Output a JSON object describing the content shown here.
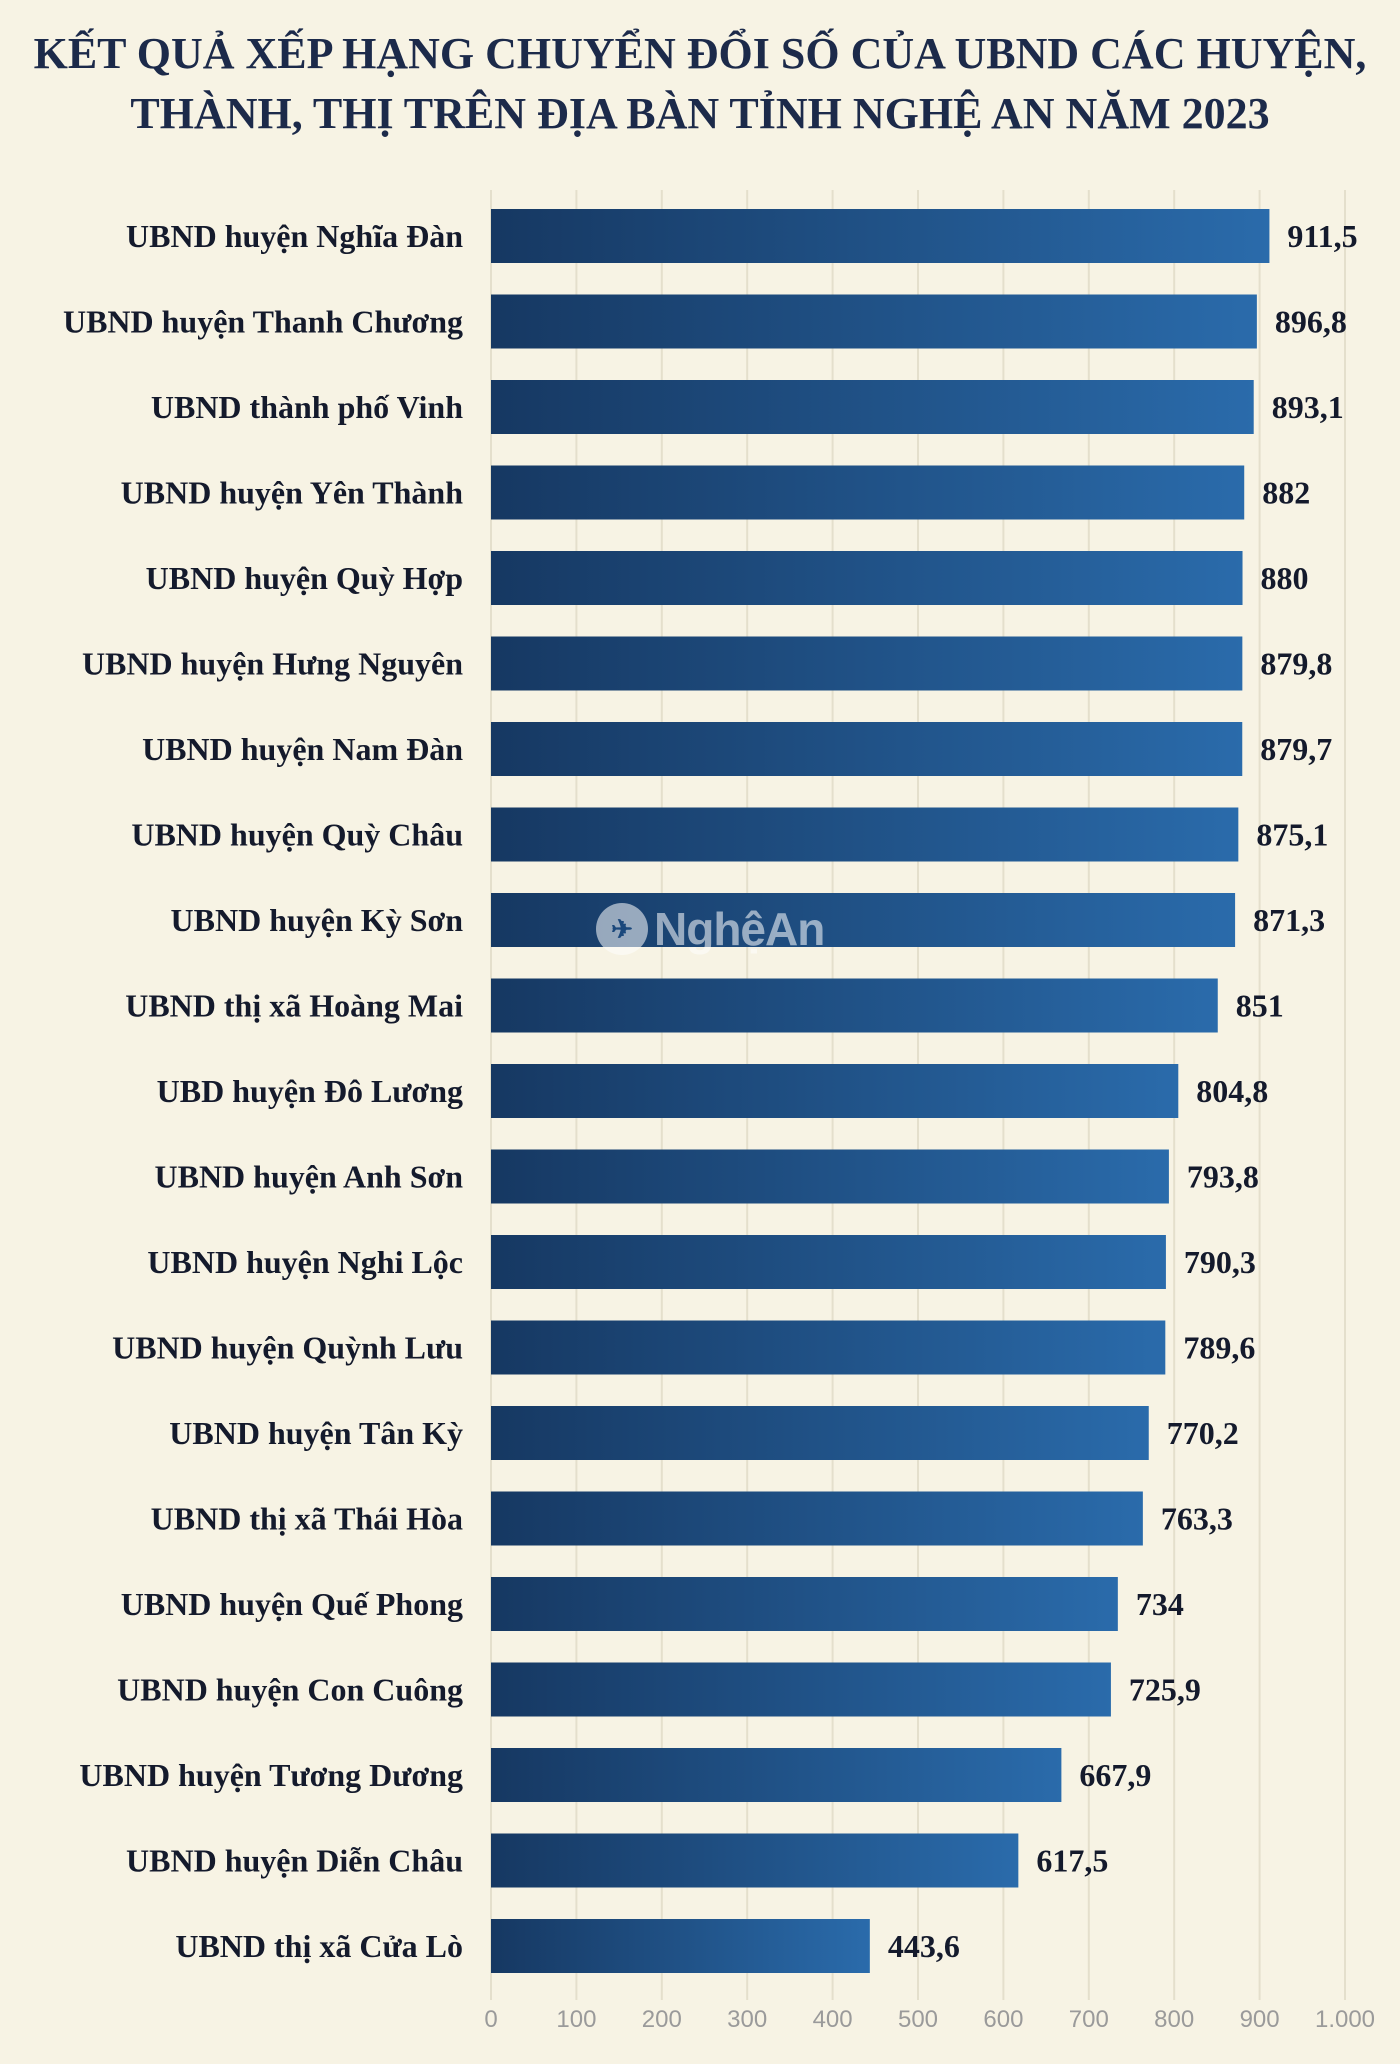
{
  "chart_data": {
    "type": "bar",
    "orientation": "horizontal",
    "title_lines": [
      "KẾT QUẢ XẾP HẠNG CHUYỂN ĐỔI SỐ CỦA UBND CÁC HUYỆN,",
      "THÀNH, THỊ TRÊN ĐỊA BÀN TỈNH NGHỆ AN NĂM 2023"
    ],
    "categories": [
      "UBND huyện Nghĩa Đàn",
      "UBND huyện Thanh Chương",
      "UBND thành phố Vinh",
      "UBND huyện Yên Thành",
      "UBND huyện Quỳ Hợp",
      "UBND huyện Hưng Nguyên",
      "UBND huyện Nam Đàn",
      "UBND huyện Quỳ Châu",
      "UBND huyện Kỳ Sơn",
      "UBND thị xã Hoàng Mai",
      "UBD huyện Đô Lương",
      "UBND huyện Anh Sơn",
      "UBND huyện Nghi Lộc",
      "UBND huyện Quỳnh Lưu",
      "UBND huyện Tân Kỳ",
      "UBND thị xã Thái Hòa",
      "UBND huyện Quế Phong",
      "UBND huyện Con Cuông",
      "UBND huyện Tương Dương",
      "UBND huyện Diễn Châu",
      "UBND thị xã Cửa Lò"
    ],
    "values": [
      911.5,
      896.8,
      893.1,
      882,
      880,
      879.8,
      879.7,
      875.1,
      871.3,
      851,
      804.8,
      793.8,
      790.3,
      789.6,
      770.2,
      763.3,
      734,
      725.9,
      667.9,
      617.5,
      443.6
    ],
    "value_labels": [
      "911,5",
      "896,8",
      "893,1",
      "882",
      "880",
      "879,8",
      "879,7",
      "875,1",
      "871,3",
      "851",
      "804,8",
      "793,8",
      "790,3",
      "789,6",
      "770,2",
      "763,3",
      "734",
      "725,9",
      "667,9",
      "617,5",
      "443,6"
    ],
    "xlim": [
      0,
      1000
    ],
    "x_ticks": [
      0,
      100,
      200,
      300,
      400,
      500,
      600,
      700,
      800,
      900,
      1000
    ],
    "x_tick_labels": [
      "0",
      "100",
      "200",
      "300",
      "400",
      "500",
      "600",
      "700",
      "800",
      "900",
      "1.000"
    ],
    "grid": true,
    "colors": {
      "bar_dark": "#163862",
      "bar_light": "#2a6bab",
      "grid": "#e4dfcc",
      "background": "#f7f3e4",
      "text": "#141a2c",
      "title": "#1c2a4a",
      "tick": "#9a9a9a"
    }
  },
  "watermark": {
    "text": "NghệAn",
    "icon": "newspaper-logo-icon"
  }
}
